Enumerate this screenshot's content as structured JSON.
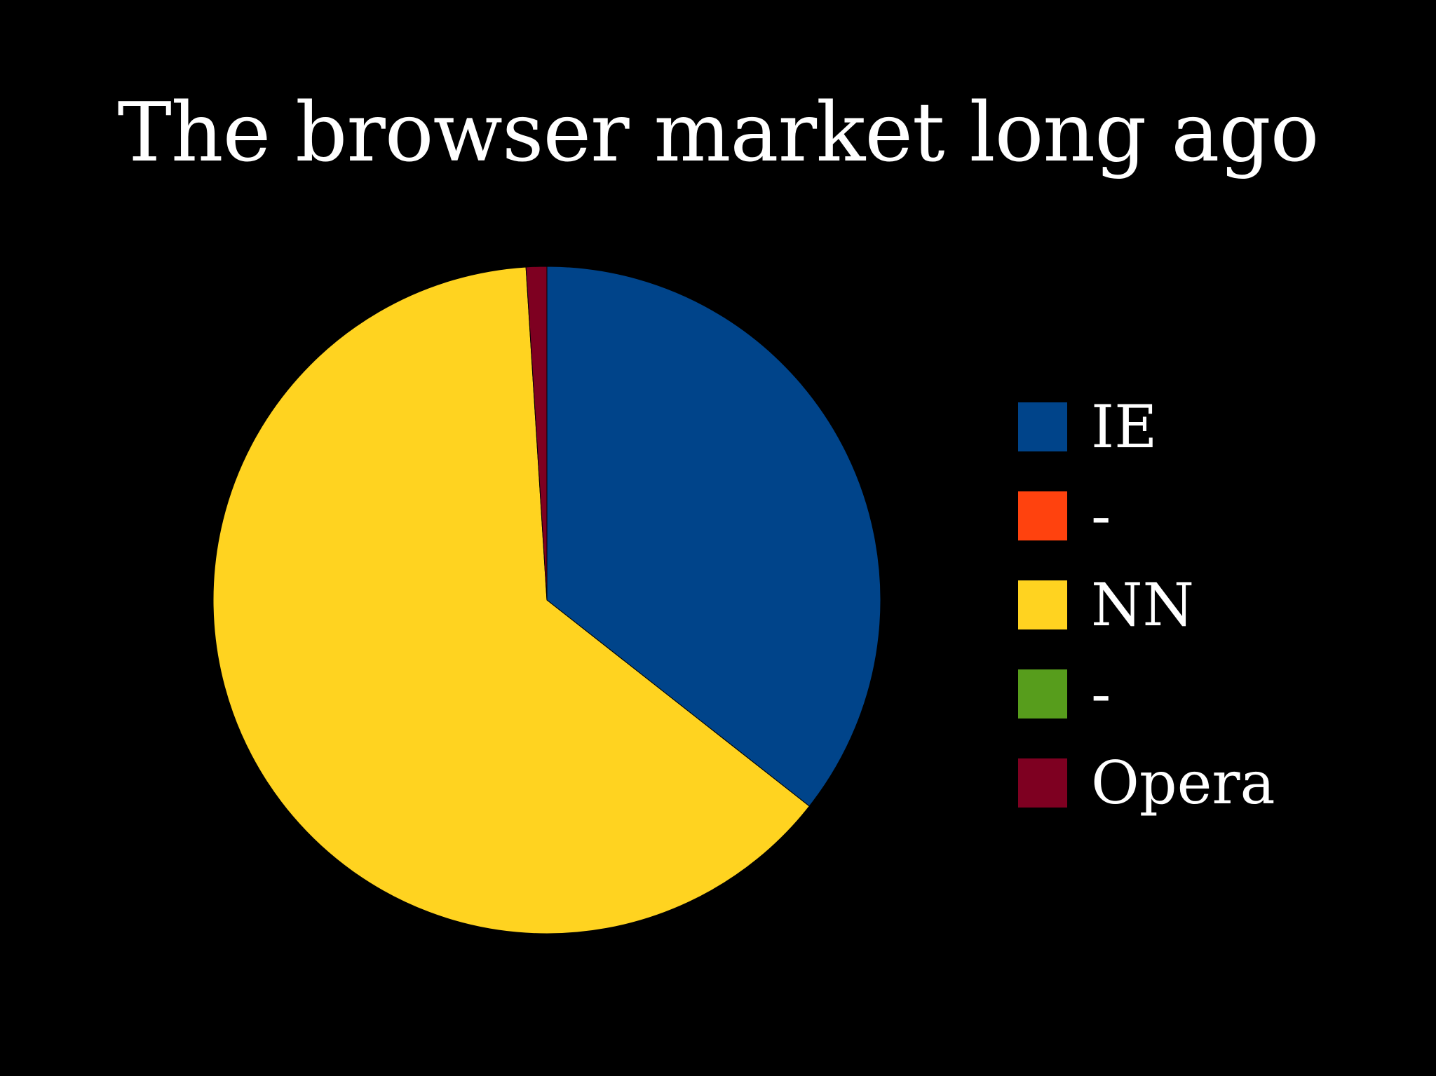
{
  "chart_data": {
    "type": "pie",
    "title": "The browser market long ago",
    "start_angle_deg": 0,
    "direction": "clockwise",
    "legend_position": "right",
    "slices": [
      {
        "label": "IE",
        "value": 35.6,
        "color": "#00448a"
      },
      {
        "label": "-",
        "value": 0,
        "color": "#ff420e"
      },
      {
        "label": "NN",
        "value": 63.4,
        "color": "#ffd320"
      },
      {
        "label": "-",
        "value": 0,
        "color": "#579d1c"
      },
      {
        "label": "Opera",
        "value": 1.0,
        "color": "#7e0021"
      }
    ]
  }
}
